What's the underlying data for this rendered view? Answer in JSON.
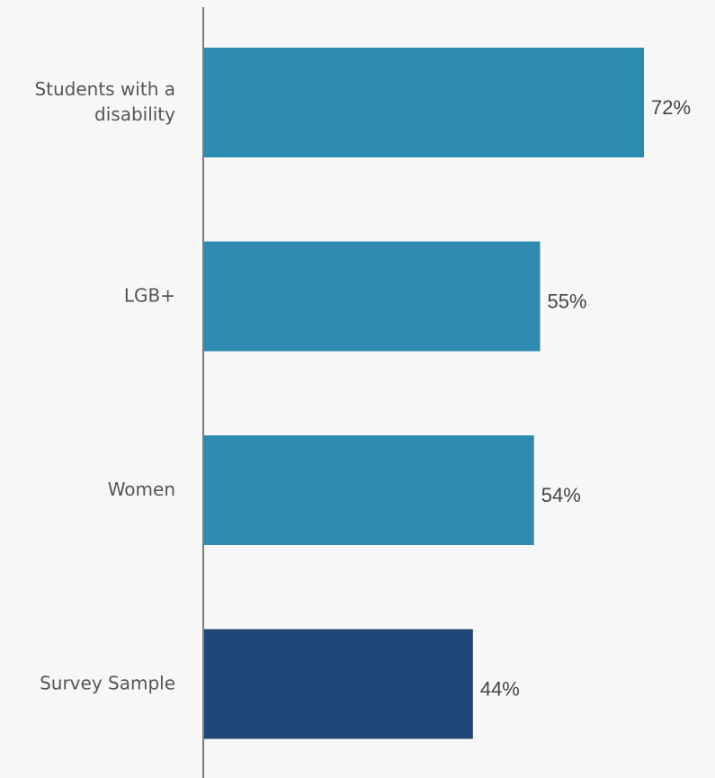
{
  "chart_data": {
    "type": "bar",
    "orientation": "horizontal",
    "categories": [
      "Students with a disability",
      "LGB+",
      "Women",
      "Survey Sample"
    ],
    "category_label_lines": [
      [
        "Students with a",
        "disability"
      ],
      [
        "LGB+"
      ],
      [
        "Women"
      ],
      [
        "Survey Sample"
      ]
    ],
    "values": [
      72,
      55,
      54,
      44
    ],
    "value_labels": [
      "72%",
      "55%",
      "54%",
      "44%"
    ],
    "value_unit": "%",
    "xlim": [
      0,
      100
    ],
    "grid": false,
    "legend": "none",
    "title": "",
    "xlabel": "",
    "ylabel": "",
    "colors": [
      "#2e8ab0",
      "#2e8ab0",
      "#2e8ab0",
      "#1f4879"
    ]
  },
  "style": {
    "background": "#f7f7f7",
    "axis_color": "#555555"
  }
}
